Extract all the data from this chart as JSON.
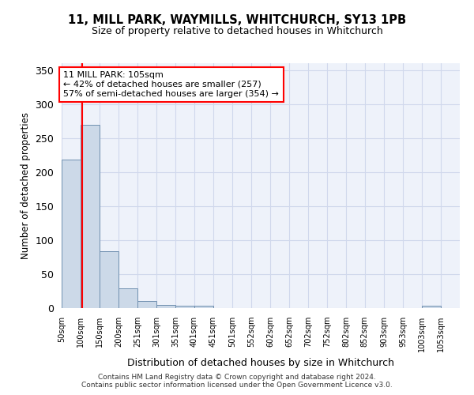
{
  "title": "11, MILL PARK, WAYMILLS, WHITCHURCH, SY13 1PB",
  "subtitle": "Size of property relative to detached houses in Whitchurch",
  "xlabel": "Distribution of detached houses by size in Whitchurch",
  "ylabel": "Number of detached properties",
  "bar_color": "#ccd9e8",
  "bar_edge_color": "#7090b0",
  "grid_color": "#d0d8ec",
  "background_color": "#eef2fa",
  "red_line_x": 105,
  "annotation_line1": "11 MILL PARK: 105sqm",
  "annotation_line2": "← 42% of detached houses are smaller (257)",
  "annotation_line3": "57% of semi-detached houses are larger (354) →",
  "categories": [
    "50sqm",
    "100sqm",
    "150sqm",
    "200sqm",
    "251sqm",
    "301sqm",
    "351sqm",
    "401sqm",
    "451sqm",
    "501sqm",
    "552sqm",
    "602sqm",
    "652sqm",
    "702sqm",
    "752sqm",
    "802sqm",
    "852sqm",
    "903sqm",
    "953sqm",
    "1003sqm",
    "1053sqm"
  ],
  "bin_edges": [
    50,
    100,
    150,
    200,
    251,
    301,
    351,
    401,
    451,
    501,
    552,
    602,
    652,
    702,
    752,
    802,
    852,
    903,
    953,
    1003,
    1053
  ],
  "bar_heights": [
    218,
    270,
    84,
    29,
    11,
    5,
    4,
    3,
    0,
    0,
    0,
    0,
    0,
    0,
    0,
    0,
    0,
    0,
    0,
    3
  ],
  "ylim": [
    0,
    360
  ],
  "yticks": [
    0,
    50,
    100,
    150,
    200,
    250,
    300,
    350
  ],
  "footer_line1": "Contains HM Land Registry data © Crown copyright and database right 2024.",
  "footer_line2": "Contains public sector information licensed under the Open Government Licence v3.0."
}
